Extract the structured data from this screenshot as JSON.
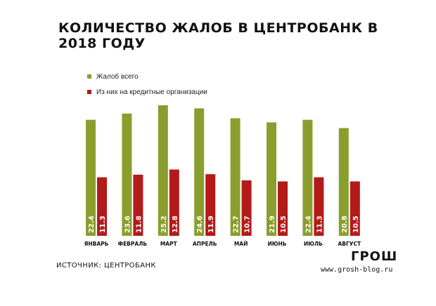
{
  "chart_data": {
    "type": "bar",
    "title": "КОЛИЧЕСТВО ЖАЛОБ В ЦЕНТРОБАНК В 2018 ГОДУ",
    "categories": [
      "ЯНВАРЬ",
      "ФЕВРАЛЬ",
      "МАРТ",
      "АПРЕЛЬ",
      "МАЙ",
      "ИЮНЬ",
      "ИЮЛЬ",
      "АВГУСТ"
    ],
    "series": [
      {
        "name": "Жалоб всего",
        "color": "#8a9e2e",
        "values": [
          22.4,
          23.6,
          25.2,
          24.6,
          22.7,
          21.9,
          22.4,
          20.8
        ]
      },
      {
        "name": "Из них на кредитные организации",
        "color": "#b31a1a",
        "values": [
          11.3,
          11.8,
          12.8,
          11.9,
          10.7,
          10.5,
          11.3,
          10.5
        ]
      }
    ],
    "ylim": [
      0,
      26
    ],
    "legend_position": "top-left",
    "grid": false
  },
  "footer": {
    "source": "ИСТОЧНИК: ЦЕНТРОБАНК",
    "brand": "ГРОШ",
    "site": "www.grosh-blog.ru"
  }
}
